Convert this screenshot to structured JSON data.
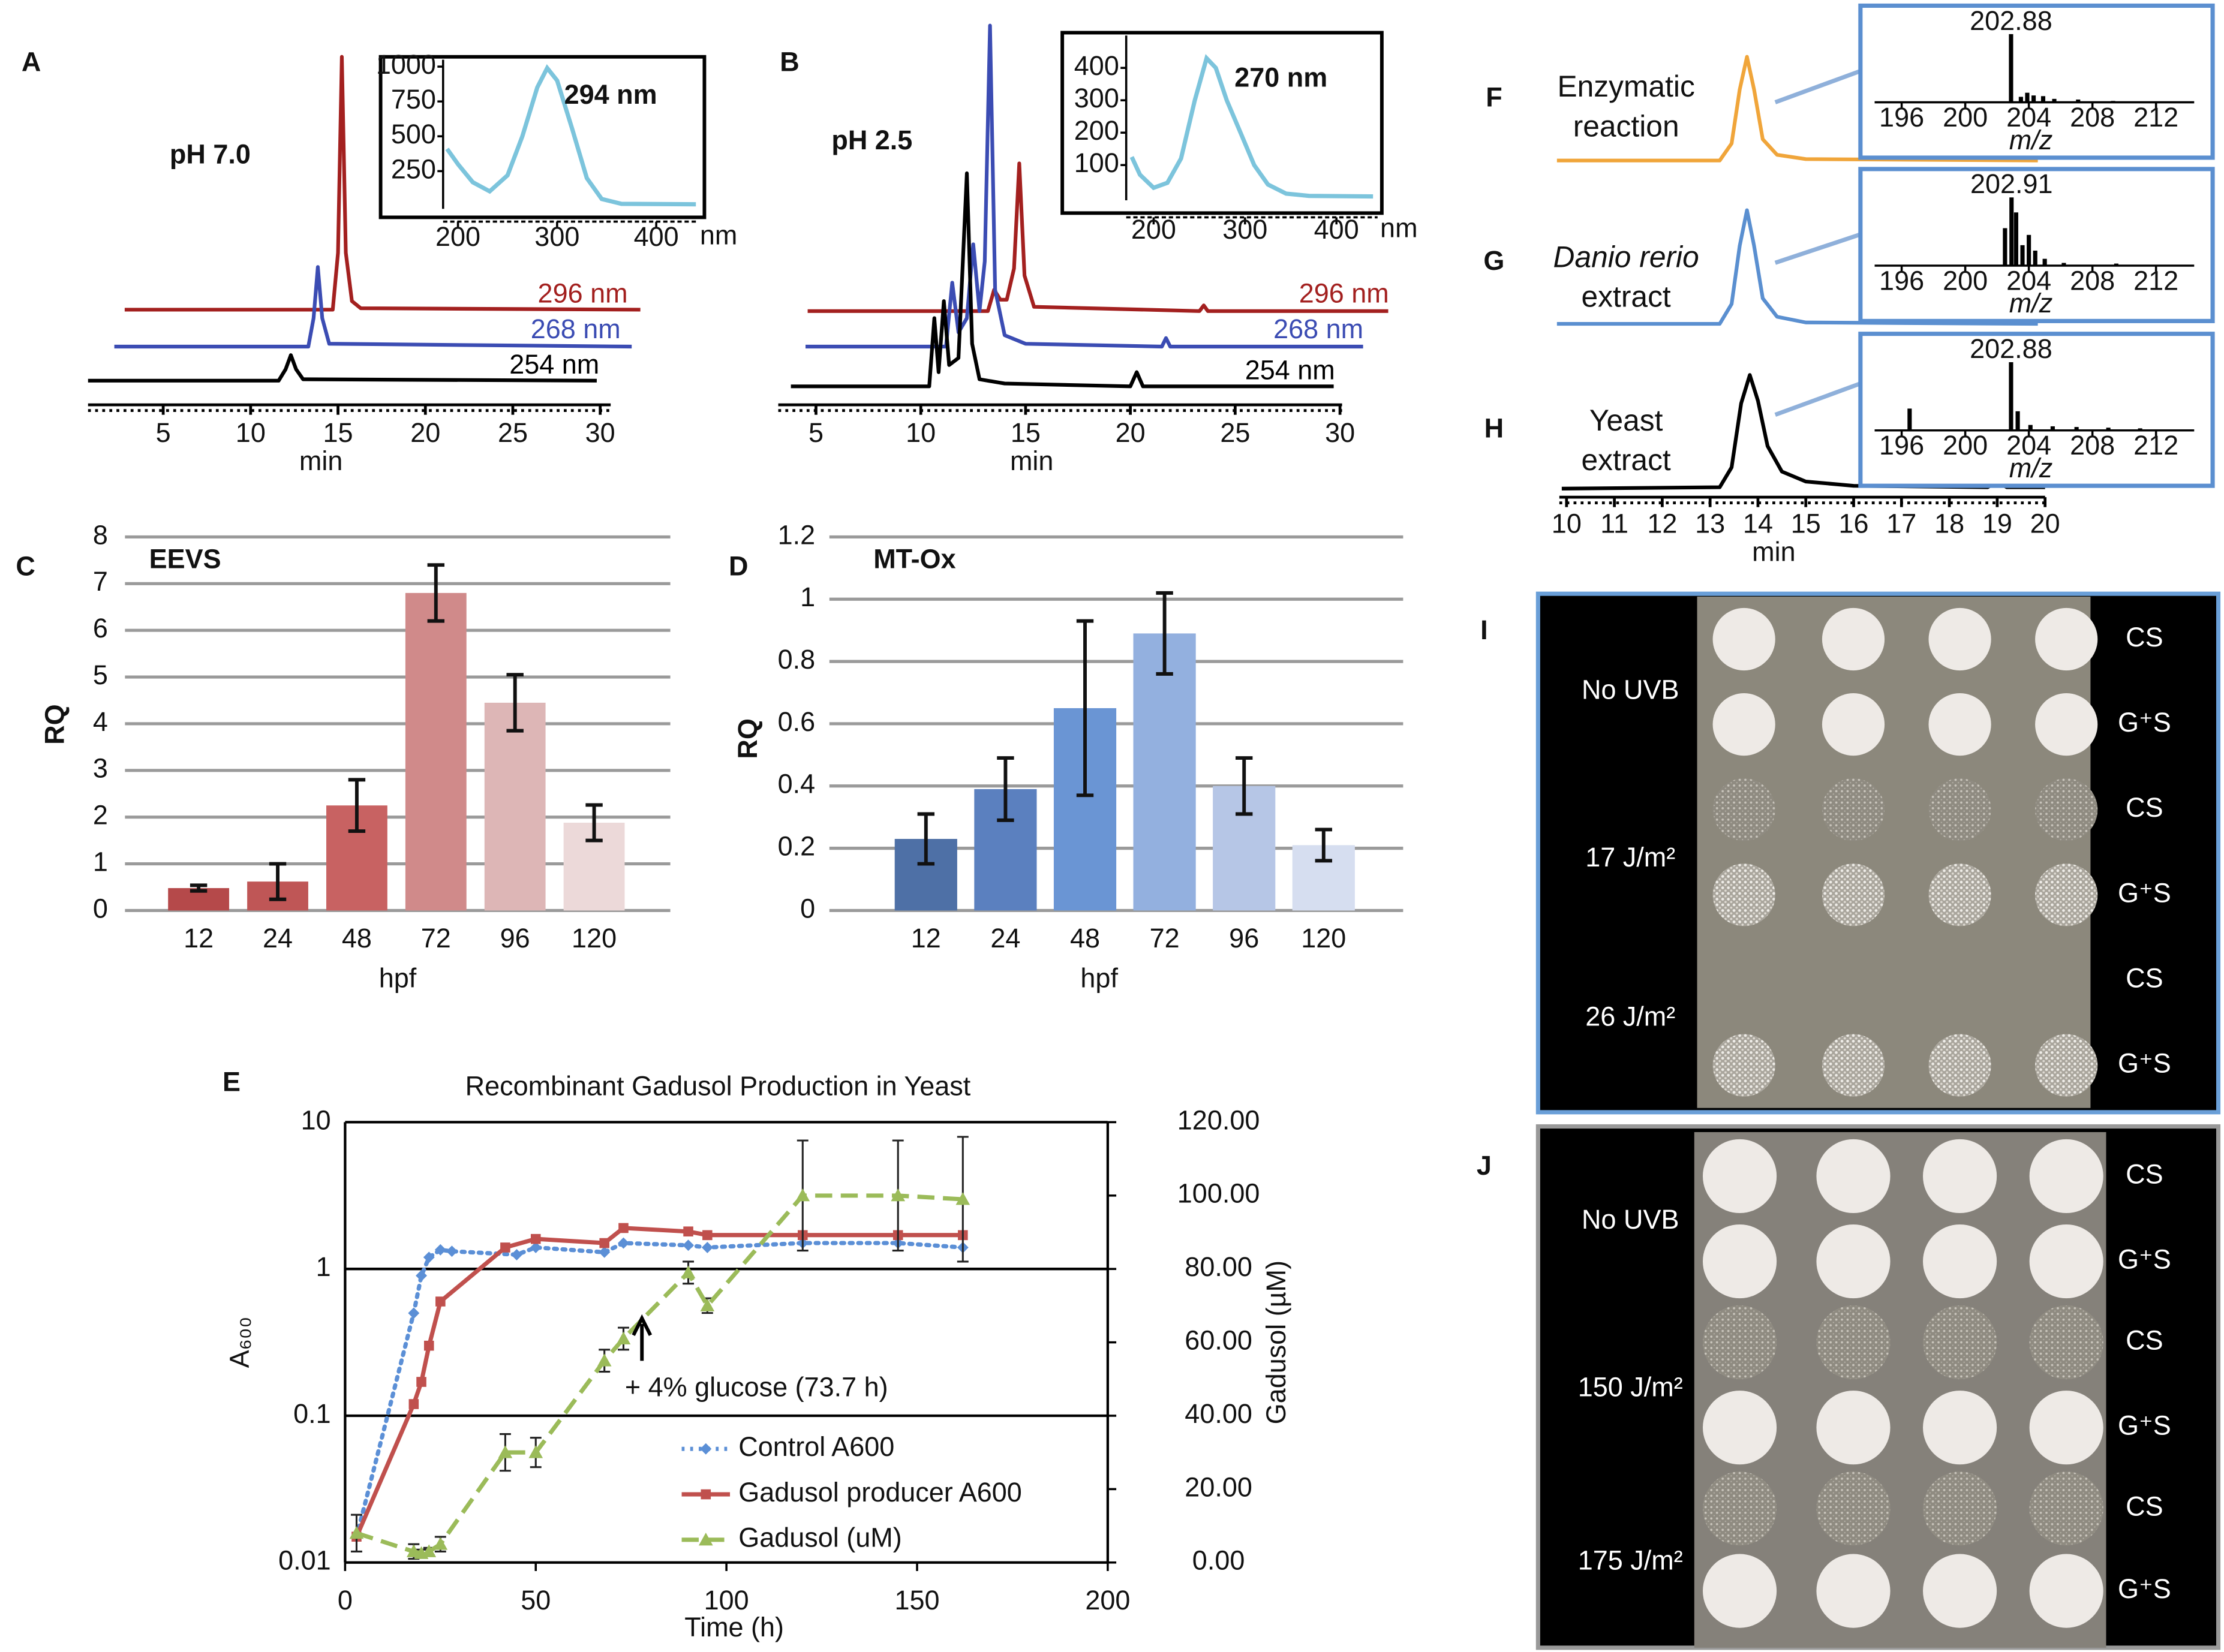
{
  "panel_labels": [
    "A",
    "B",
    "C",
    "D",
    "E",
    "F",
    "G",
    "H",
    "I",
    "J"
  ],
  "chart_data": [
    {
      "type": "chromatogram",
      "annotation": "pH 7.0",
      "x_label": "min",
      "xlim": [
        0.7,
        30.6
      ],
      "xticks": [
        5,
        10,
        15,
        20,
        25,
        30
      ],
      "series": [
        {
          "name": "296 nm",
          "color": "#a3201f",
          "x": [
            2.8,
            14.7,
            15.0,
            15.22,
            15.45,
            15.8,
            16.3,
            32.3
          ],
          "values": [
            0,
            0,
            40,
            178,
            40,
            6,
            1,
            0
          ]
        },
        {
          "name": "268 nm",
          "color": "#3b4cb3",
          "x": [
            2.2,
            13.3,
            13.6,
            13.85,
            14.1,
            14.5,
            31.8
          ],
          "values": [
            0,
            0,
            20,
            56,
            20,
            2,
            0
          ]
        },
        {
          "name": "254 nm",
          "color": "#000000",
          "x": [
            0.7,
            11.6,
            12.0,
            12.3,
            12.6,
            13.0,
            29.8
          ],
          "values": [
            0,
            0,
            8,
            18,
            8,
            1,
            0
          ]
        }
      ]
    },
    {
      "type": "line",
      "annotation": "294 nm",
      "x_label": "nm",
      "xlim": [
        185,
        440
      ],
      "ylim": [
        0,
        1050
      ],
      "xticks": [
        200,
        300,
        400
      ],
      "yticks": [
        250,
        500,
        750,
        1000
      ],
      "color": "#7cc4dc",
      "x": [
        189,
        200,
        215,
        232,
        250,
        265,
        280,
        290,
        300,
        315,
        330,
        345,
        365,
        440
      ],
      "values": [
        410,
        300,
        170,
        105,
        220,
        500,
        850,
        990,
        900,
        560,
        200,
        50,
        15,
        12
      ]
    },
    {
      "type": "chromatogram",
      "annotation": "pH 2.5",
      "x_label": "min",
      "xlim": [
        3.2,
        30.1
      ],
      "xticks": [
        5,
        10,
        15,
        20,
        25,
        30
      ],
      "series": [
        {
          "name": "296 nm",
          "color": "#a3201f",
          "x": [
            4.6,
            13.2,
            13.5,
            13.8,
            14.1,
            14.45,
            14.7,
            14.95,
            15.4,
            23.3,
            23.5,
            23.7,
            32.3
          ],
          "values": [
            0,
            0,
            15,
            8,
            8,
            30,
            104,
            25,
            3,
            0,
            4,
            0,
            0
          ]
        },
        {
          "name": "268 nm",
          "color": "#3b4cb3",
          "x": [
            4.5,
            11.2,
            11.5,
            11.8,
            12.2,
            12.5,
            12.8,
            13.05,
            13.3,
            13.55,
            14.0,
            15.0,
            21.5,
            21.7,
            21.9,
            31.1
          ],
          "values": [
            0,
            0,
            45,
            10,
            20,
            72,
            25,
            60,
            226,
            40,
            8,
            2,
            0,
            6,
            0,
            0
          ]
        },
        {
          "name": "254 nm",
          "color": "#000000",
          "x": [
            3.8,
            10.4,
            10.65,
            10.85,
            11.1,
            11.35,
            11.8,
            12.2,
            12.45,
            12.8,
            14.0,
            20.0,
            20.3,
            20.6,
            29.7
          ],
          "values": [
            0,
            0,
            48,
            10,
            60,
            15,
            20,
            150,
            30,
            5,
            2,
            0,
            10,
            0,
            0
          ]
        }
      ]
    },
    {
      "type": "line",
      "annotation": "270 nm",
      "x_label": "nm",
      "xlim": [
        170,
        445
      ],
      "ylim": [
        0,
        500
      ],
      "xticks": [
        200,
        300,
        400
      ],
      "yticks": [
        100,
        200,
        300,
        400
      ],
      "color": "#7cc4dc",
      "x": [
        176,
        185,
        200,
        215,
        230,
        245,
        258,
        268,
        280,
        295,
        310,
        325,
        345,
        370,
        440
      ],
      "values": [
        125,
        70,
        30,
        45,
        120,
        300,
        430,
        400,
        300,
        200,
        100,
        40,
        12,
        5,
        3
      ]
    },
    {
      "type": "chromatogram",
      "x_label": "min",
      "xlim": [
        9.85,
        20.0
      ],
      "xticks": [
        10,
        11,
        12,
        13,
        14,
        15,
        16,
        17,
        18,
        19,
        20
      ],
      "series": [
        {
          "name": "Enzymatic\nreaction",
          "color": "#f0a53a",
          "x": [
            9.8,
            13.2,
            13.45,
            13.62,
            13.77,
            13.92,
            14.1,
            14.4,
            15.0,
            19.85
          ],
          "values": [
            0,
            0,
            12,
            50,
            73,
            50,
            15,
            4,
            1,
            0
          ]
        },
        {
          "name": "Danio rerio\nextract",
          "color": "#5a8fd0",
          "x": [
            9.8,
            13.2,
            13.45,
            13.62,
            13.77,
            13.92,
            14.1,
            14.4,
            15.0,
            19.85
          ],
          "values": [
            0,
            0,
            14,
            55,
            80,
            55,
            18,
            5,
            1,
            0
          ]
        },
        {
          "name": "Yeast\nextract",
          "color": "#000000",
          "x": [
            9.9,
            13.2,
            13.45,
            13.65,
            13.83,
            14.0,
            14.2,
            14.5,
            15.0,
            16.0,
            18.8,
            19.0,
            19.2,
            20.0
          ],
          "values": [
            0,
            1,
            15,
            60,
            80,
            62,
            30,
            12,
            5,
            2,
            1,
            5,
            1,
            1
          ]
        }
      ]
    },
    {
      "type": "spectrum",
      "x_label": "m/z",
      "xlim": [
        194.3,
        214.4
      ],
      "ylim": [
        0,
        100
      ],
      "xticks": [
        196,
        200,
        204,
        208,
        212
      ],
      "color": "#000000",
      "x": [
        202.88,
        203.5,
        203.9,
        204.3,
        204.9,
        205.6,
        207.1,
        209.3
      ],
      "values": [
        100,
        8,
        14,
        10,
        9,
        5,
        4,
        2
      ]
    },
    {
      "type": "spectrum",
      "x_label": "m/z",
      "xlim": [
        194.3,
        214.4
      ],
      "ylim": [
        0,
        100
      ],
      "xticks": [
        196,
        200,
        204,
        208,
        212
      ],
      "color": "#000000",
      "x": [
        202.5,
        202.91,
        203.2,
        203.6,
        204.0,
        204.4,
        205.0,
        206.2,
        209.5
      ],
      "values": [
        55,
        100,
        78,
        30,
        45,
        22,
        10,
        4,
        3
      ]
    },
    {
      "type": "spectrum",
      "x_label": "m/z",
      "xlim": [
        194.3,
        214.4
      ],
      "ylim": [
        0,
        100
      ],
      "xticks": [
        196,
        200,
        204,
        208,
        212
      ],
      "color": "#000000",
      "x": [
        196.5,
        202.88,
        203.3,
        204.1,
        205.5,
        207.0,
        209.0,
        211.0
      ],
      "values": [
        32,
        100,
        28,
        8,
        6,
        5,
        4,
        3
      ]
    },
    {
      "type": "bar",
      "title": "EEVS",
      "x_label": "hpf",
      "y_label": "RQ",
      "categories": [
        "12",
        "24",
        "48",
        "72",
        "96",
        "120"
      ],
      "values": [
        0.48,
        0.62,
        2.25,
        6.8,
        4.45,
        1.88
      ],
      "errors": [
        0.06,
        0.38,
        0.55,
        0.6,
        0.6,
        0.38
      ],
      "colors": [
        "#b5494a",
        "#bf5656",
        "#c86262",
        "#d08a8a",
        "#ddb6b6",
        "#ecd9d9"
      ],
      "ylim": [
        0,
        8
      ],
      "yticks": [
        0,
        1,
        2,
        3,
        4,
        5,
        6,
        7,
        8
      ],
      "grid": true
    },
    {
      "type": "bar",
      "title": "MT-Ox",
      "x_label": "hpf",
      "y_label": "RQ",
      "categories": [
        "12",
        "24",
        "48",
        "72",
        "96",
        "120"
      ],
      "values": [
        0.23,
        0.39,
        0.65,
        0.89,
        0.4,
        0.21
      ],
      "errors": [
        0.08,
        0.1,
        0.28,
        0.13,
        0.09,
        0.05
      ],
      "colors": [
        "#4e70a6",
        "#5b80bf",
        "#6a95d4",
        "#93b0df",
        "#b6c6e6",
        "#d6def0"
      ],
      "ylim": [
        0,
        1.2
      ],
      "yticks": [
        0,
        0.2,
        0.4,
        0.6,
        0.8,
        1,
        1.2
      ],
      "grid": true
    },
    {
      "type": "logline",
      "title": "Recombinant Gadusol Production in Yeast",
      "x_label": "Time (h)",
      "y_label": "A₆₀₀",
      "y2_label": "Gadusol (µM)",
      "log_y": true,
      "grid": true,
      "legend": "bottom",
      "annotation": "+ 4% glucose (73.7 h)",
      "xlim": [
        0,
        200
      ],
      "xticks": [
        0,
        50,
        100,
        150,
        200
      ],
      "ylim": [
        0.01,
        10
      ],
      "yticks": [
        0.01,
        0.1,
        1,
        10
      ],
      "y2lim": [
        0,
        120
      ],
      "y2ticks": [
        {
          "value": 0,
          "label": "0.00"
        },
        {
          "value": 20,
          "label": "20.00"
        },
        {
          "value": 40,
          "label": "40.00"
        },
        {
          "value": 60,
          "label": "60.00"
        },
        {
          "value": 80,
          "label": "80.00"
        },
        {
          "value": 100,
          "label": "100.00"
        },
        {
          "value": 120,
          "label": "120.00"
        }
      ],
      "series": [
        {
          "name": "Control A600",
          "color": "#5b8fd6",
          "style": "dotted",
          "marker": "diamond",
          "x": [
            3,
            18,
            20,
            22,
            25,
            28,
            45,
            50,
            68,
            73,
            90,
            95,
            120,
            145,
            162
          ],
          "values": [
            0.015,
            0.5,
            0.9,
            1.2,
            1.35,
            1.32,
            1.25,
            1.4,
            1.3,
            1.5,
            1.45,
            1.4,
            1.5,
            1.5,
            1.4
          ]
        },
        {
          "name": "Gadusol producer A600",
          "color": "#c0504d",
          "style": "solid",
          "marker": "square",
          "x": [
            3,
            18,
            20,
            22,
            25,
            42,
            50,
            68,
            73,
            90,
            95,
            120,
            145,
            162
          ],
          "values": [
            0.015,
            0.12,
            0.17,
            0.3,
            0.6,
            1.4,
            1.6,
            1.5,
            1.9,
            1.8,
            1.7,
            1.7,
            1.7,
            1.7
          ]
        },
        {
          "name": "Gadusol (uM)",
          "color": "#9bbb59",
          "style": "dashed",
          "marker": "triangle",
          "axis": "y2",
          "x": [
            3,
            18,
            20,
            22,
            25,
            42,
            50,
            68,
            73,
            90,
            95,
            120,
            145,
            162
          ],
          "values": [
            8,
            3,
            2.5,
            3,
            5,
            30,
            30,
            55,
            61,
            79,
            70,
            100,
            100,
            99
          ],
          "errors": [
            5,
            2,
            1,
            1,
            2,
            5,
            4,
            3,
            3,
            3,
            2,
            15,
            15,
            17
          ]
        }
      ]
    }
  ],
  "photos": [
    {
      "doses": [
        "No UVB",
        "17 J/m²",
        "26 J/m²"
      ],
      "strains": [
        "CS",
        "G⁺S",
        "CS",
        "G⁺S",
        "CS",
        "G⁺S"
      ]
    },
    {
      "doses": [
        "No UVB",
        "150 J/m²",
        "175 J/m²"
      ],
      "strains": [
        "CS",
        "G⁺S",
        "CS",
        "G⁺S",
        "CS",
        "G⁺S"
      ]
    }
  ]
}
